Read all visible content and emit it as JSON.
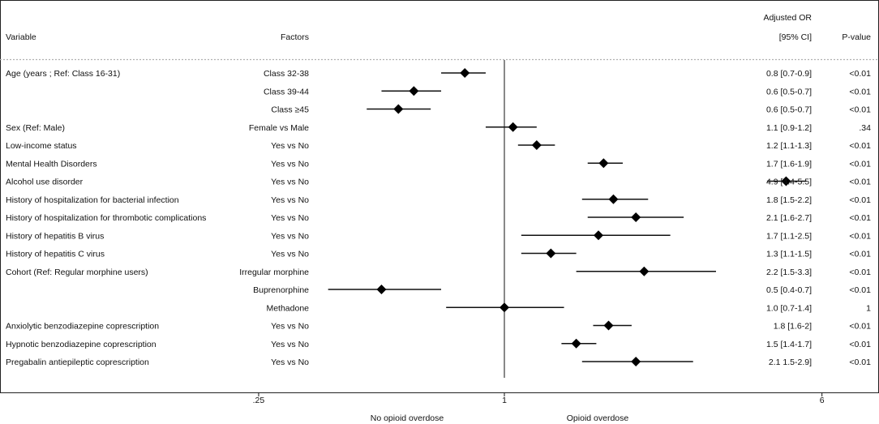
{
  "chart_data": {
    "type": "forest",
    "columns": {
      "variable": "Variable",
      "factors": "Factors",
      "or_line1": "Adjusted OR",
      "or_line2": "[95% CI]",
      "pvalue": "P-value"
    },
    "x_scale": "log",
    "xlim": [
      0.18,
      8
    ],
    "null_line": 1,
    "x_ticks": [
      {
        "value": 0.25,
        "label": ".25"
      },
      {
        "value": 1,
        "label": "1"
      },
      {
        "value": 6,
        "label": "6"
      }
    ],
    "x_annotations": {
      "left": "No opioid overdose",
      "right": "Opioid overdose"
    },
    "rows": [
      {
        "variable": "Age (years ; Ref: Class 16-31)",
        "factor": "Class 32-38",
        "or": 0.8,
        "lo": 0.7,
        "hi": 0.9,
        "or_text": "0.8 [0.7-0.9]",
        "p": "<0.01"
      },
      {
        "variable": "",
        "factor": "Class 39-44",
        "or": 0.6,
        "lo": 0.5,
        "hi": 0.7,
        "or_text": "0.6 [0.5-0.7]",
        "p": "<0.01"
      },
      {
        "variable": "",
        "factor": "Class ≥45",
        "or": 0.55,
        "lo": 0.46,
        "hi": 0.66,
        "or_text": "0.6 [0.5-0.7]",
        "p": "<0.01"
      },
      {
        "variable": "Sex (Ref: Male)",
        "factor": "Female vs Male",
        "or": 1.05,
        "lo": 0.9,
        "hi": 1.2,
        "or_text": "1.1 [0.9-1.2]",
        "p": ".34"
      },
      {
        "variable": "Low-income status",
        "factor": "Yes vs No",
        "or": 1.2,
        "lo": 1.08,
        "hi": 1.33,
        "or_text": "1.2 [1.1-1.3]",
        "p": "<0.01"
      },
      {
        "variable": "Mental Health Disorders",
        "factor": "Yes vs No",
        "or": 1.75,
        "lo": 1.6,
        "hi": 1.95,
        "or_text": "1.7 [1.6-1.9]",
        "p": "<0.01"
      },
      {
        "variable": "Alcohol use disorder",
        "factor": "Yes vs No",
        "or": 4.9,
        "lo": 4.4,
        "hi": 5.5,
        "or_text": "4.9 [4.4-5.5]",
        "p": "<0.01"
      },
      {
        "variable": "History of hospitalization for bacterial infection",
        "factor": "Yes vs No",
        "or": 1.85,
        "lo": 1.55,
        "hi": 2.25,
        "or_text": "1.8 [1.5-2.2]",
        "p": "<0.01"
      },
      {
        "variable": "History of hospitalization for thrombotic complications",
        "factor": "Yes vs No",
        "or": 2.1,
        "lo": 1.6,
        "hi": 2.75,
        "or_text": "2.1 [1.6-2.7]",
        "p": "<0.01"
      },
      {
        "variable": "History of hepatitis B virus",
        "factor": "Yes vs No",
        "or": 1.7,
        "lo": 1.1,
        "hi": 2.55,
        "or_text": "1.7 [1.1-2.5]",
        "p": "<0.01"
      },
      {
        "variable": "History of hepatitis C virus",
        "factor": "Yes vs No",
        "or": 1.3,
        "lo": 1.1,
        "hi": 1.5,
        "or_text": "1.3 [1.1-1.5]",
        "p": "<0.01"
      },
      {
        "variable": "Cohort (Ref: Regular morphine users)",
        "factor": "Irregular morphine",
        "or": 2.2,
        "lo": 1.5,
        "hi": 3.3,
        "or_text": "2.2 [1.5-3.3]",
        "p": "<0.01"
      },
      {
        "variable": "",
        "factor": "Buprenorphine",
        "or": 0.5,
        "lo": 0.37,
        "hi": 0.7,
        "or_text": "0.5 [0.4-0.7]",
        "p": "<0.01"
      },
      {
        "variable": "",
        "factor": "Methadone",
        "or": 1.0,
        "lo": 0.72,
        "hi": 1.4,
        "or_text": "1.0 [0.7-1.4]",
        "p": "1"
      },
      {
        "variable": "Anxiolytic benzodiazepine coprescription",
        "factor": "Yes vs No",
        "or": 1.8,
        "lo": 1.65,
        "hi": 2.05,
        "or_text": "1.8 [1.6-2]",
        "p": "<0.01"
      },
      {
        "variable": "Hypnotic benzodiazepine coprescription",
        "factor": "Yes vs No",
        "or": 1.5,
        "lo": 1.38,
        "hi": 1.68,
        "or_text": "1.5 [1.4-1.7]",
        "p": "<0.01"
      },
      {
        "variable": "Pregabalin antiepileptic coprescription",
        "factor": "Yes vs No",
        "or": 2.1,
        "lo": 1.55,
        "hi": 2.9,
        "or_text": "2.1 1.5-2.9]",
        "p": "<0.01"
      }
    ]
  }
}
